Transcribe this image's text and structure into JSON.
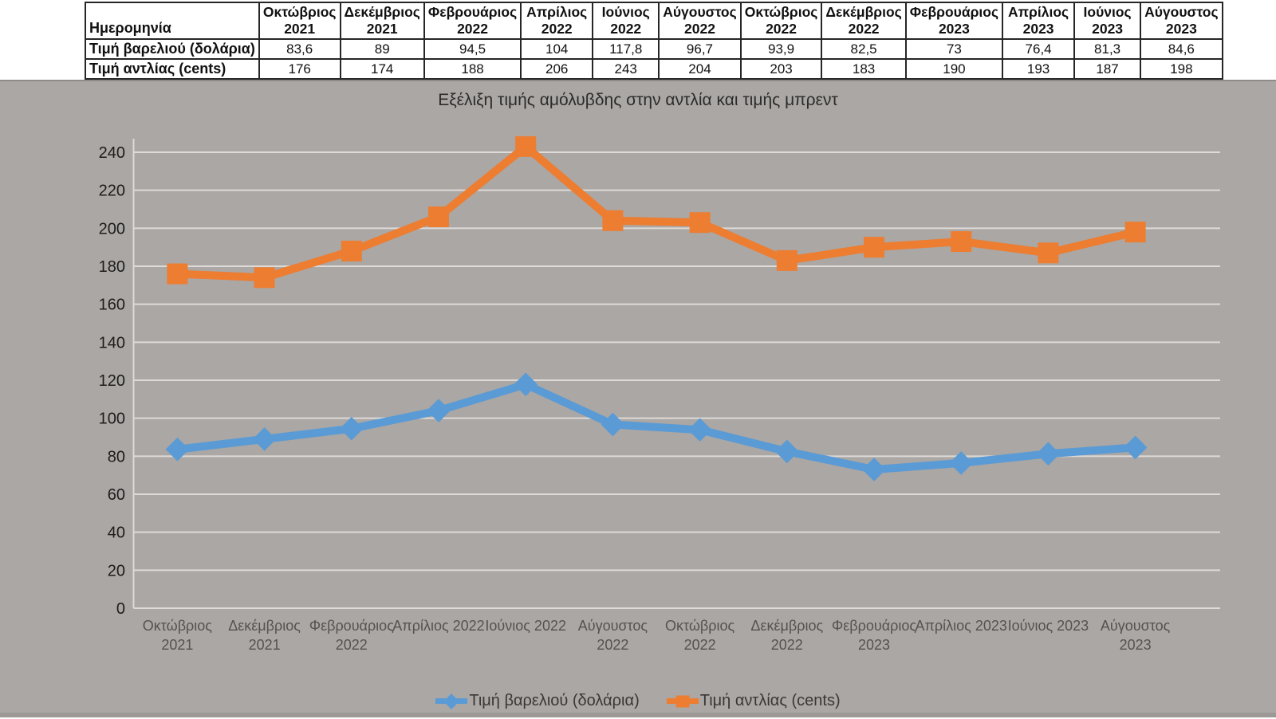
{
  "table": {
    "date_header": "Ημερομηνία",
    "columns": [
      {
        "month": "Οκτώβριος",
        "year": "2021"
      },
      {
        "month": "Δεκέμβριος",
        "year": "2021"
      },
      {
        "month": "Φεβρουάριος",
        "year": "2022"
      },
      {
        "month": "Απρίλιος",
        "year": "2022"
      },
      {
        "month": "Ιούνιος",
        "year": "2022"
      },
      {
        "month": "Αύγουστος",
        "year": "2022"
      },
      {
        "month": "Οκτώβριος",
        "year": "2022"
      },
      {
        "month": "Δεκέμβριος",
        "year": "2022"
      },
      {
        "month": "Φεβρουάριος",
        "year": "2023"
      },
      {
        "month": "Απρίλιος",
        "year": "2023"
      },
      {
        "month": "Ιούνιος",
        "year": "2023"
      },
      {
        "month": "Αύγουστος",
        "year": "2023"
      }
    ],
    "rows": [
      {
        "label": "Τιμή βαρελιού (δολάρια)",
        "values": [
          "83,6",
          "89",
          "94,5",
          "104",
          "117,8",
          "96,7",
          "93,9",
          "82,5",
          "73",
          "76,4",
          "81,3",
          "84,6"
        ]
      },
      {
        "label": "Τιμή αντλίας (cents)",
        "values": [
          "176",
          "174",
          "188",
          "206",
          "243",
          "204",
          "203",
          "183",
          "190",
          "193",
          "187",
          "198"
        ]
      }
    ]
  },
  "chart_data": {
    "type": "line",
    "title": "Εξέλιξη τιμής αμόλυβδης στην αντλία και τιμής μπρεντ",
    "categories": [
      "Οκτώβριος 2021",
      "Δεκέμβριος 2021",
      "Φεβρουάριος 2022",
      "Απρίλιος 2022",
      "Ιούνιος 2022",
      "Αύγουστος 2022",
      "Οκτώβριος 2022",
      "Δεκέμβριος 2022",
      "Φεβρουάριος 2023",
      "Απρίλιος 2023",
      "Ιούνιος 2023",
      "Αύγουστος 2023"
    ],
    "series": [
      {
        "name": "Τιμή βαρελιού (δολάρια)",
        "values": [
          83.6,
          89,
          94.5,
          104,
          117.8,
          96.7,
          93.9,
          82.5,
          73,
          76.4,
          81.3,
          84.6
        ],
        "color": "#5B9BD5",
        "marker": "diamond"
      },
      {
        "name": "Τιμή αντλίας (cents)",
        "values": [
          176,
          174,
          188,
          206,
          243,
          204,
          203,
          183,
          190,
          193,
          187,
          198
        ],
        "color": "#ED7D31",
        "marker": "square"
      }
    ],
    "xlabel": "",
    "ylabel": "",
    "ylim": [
      0,
      240
    ],
    "ytick_step": 20,
    "grid": true,
    "legend_position": "bottom",
    "two_line_tick_indices": [
      0,
      1,
      2,
      5,
      6,
      7,
      8,
      11
    ],
    "plot_background": "#ABA7A4",
    "gridline_color": "#DDDAD7",
    "axis_line_color": "#DDDAD7",
    "ytick_label_color": "#1c1c1c",
    "xtick_label_color": "#56524f",
    "title_color": "#2b2b2b",
    "legend_text_color": "#3a3734",
    "bottom_edge_color": "#9b9896"
  }
}
